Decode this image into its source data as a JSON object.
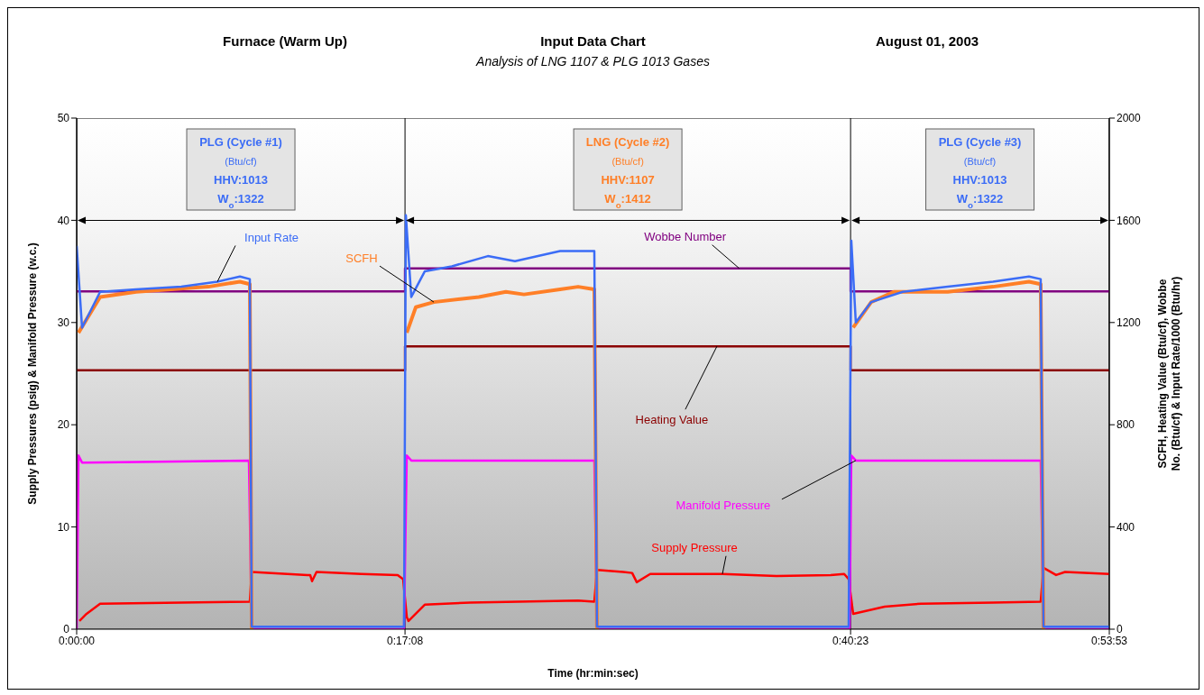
{
  "chart_data": {
    "type": "line",
    "title": "Input Data Chart",
    "subtitle": "Analysis of LNG 1107 & PLG 1013 Gases",
    "xlabel": "Time (hr:min:sec)",
    "ylabel": "Supply Pressures (psig) & Manifold Pressure (w.c.)",
    "y2label": "SCFH, Heating Value (Btu/cf), Wobbe No. (Btu/cf) & Input Rate/1000 (Btu/hr)",
    "annotations": [
      "Furnace (Warm Up)",
      "August 01, 2003",
      "PLG (Cycle #1)\n(Btu/cf)\nHHV:1013\nW$_{o}$:1322",
      "LNG (Cycle #2)\n(Btu/cf)\nHHV:1107\nW$_{o}$:1412",
      "PLG (Cycle #3)\n(Btu/cf)\nHHV:1013\nW$_{o}$:1322"
    ],
    "xlim": [
      0,
      0.89806
    ],
    "xticks": [
      {
        "value": 0,
        "label": "0:00:00"
      },
      {
        "value": 0.28556,
        "label": "0:17:08"
      },
      {
        "value": 0.67306,
        "label": "0:40:23"
      },
      {
        "value": 0.89806,
        "label": "0:53:53"
      }
    ],
    "ylim": [
      0,
      50
    ],
    "yticks": [
      0,
      10,
      20,
      30,
      40,
      50
    ],
    "y2lim": [
      0,
      2000
    ],
    "y2ticks": [
      0,
      400,
      800,
      1200,
      1600,
      2000
    ],
    "marker": "none",
    "line_style": "solid",
    "grid": "x",
    "series": [
      {
        "name": "Wobbe Number",
        "color": "#800080",
        "axis": "y2",
        "x": [
          0,
          0.28556,
          0.28556,
          0.67306,
          0.67306,
          0.89806
        ],
        "values": [
          1322,
          1322,
          1412,
          1412,
          1322,
          1322
        ]
      },
      {
        "name": "Heating Value",
        "color": "#8b0000",
        "axis": "y2",
        "x": [
          0,
          0.28556,
          0.28556,
          0.67306,
          0.67306,
          0.89806
        ],
        "values": [
          1013,
          1013,
          1107,
          1107,
          1013,
          1013
        ]
      },
      {
        "name": "Supply Pressure",
        "color": "#ff0000",
        "x": [
          0.0024,
          0.0086,
          0.0204,
          0.091,
          0.1506,
          0.1522,
          0.1694,
          0.2008,
          0.2031,
          0.2047,
          0.2086,
          0.2478,
          0.2792,
          0.2839,
          0.2871,
          0.2886,
          0.3027,
          0.342,
          0.4361,
          0.4502,
          0.4525,
          0.4753,
          0.4831,
          0.4871,
          0.4988,
          0.5616,
          0.6086,
          0.6557,
          0.6675,
          0.6714,
          0.6753,
          0.7027,
          0.7341,
          0.7969,
          0.8384,
          0.8408,
          0.8518,
          0.8596,
          0.89806
        ],
        "values": [
          0.8,
          1.5,
          2.5,
          2.6,
          2.7,
          5.6,
          5.5,
          5.3,
          5.3,
          4.7,
          5.6,
          5.4,
          5.3,
          4.9,
          1.2,
          0.8,
          2.4,
          2.6,
          2.8,
          2.7,
          5.8,
          5.6,
          5.5,
          4.6,
          5.4,
          5.4,
          5.2,
          5.3,
          5.4,
          4.9,
          1.5,
          2.2,
          2.5,
          2.6,
          2.7,
          6,
          5.3,
          5.6,
          5.4
        ]
      },
      {
        "name": "Manifold Pressure",
        "color": "#ff00ff",
        "x": [
          0,
          0.0016,
          0.0047,
          0.1498,
          0.1522,
          0.2847,
          0.2871,
          0.291,
          0.4502,
          0.4525,
          0.6722,
          0.6737,
          0.6776,
          0.8384,
          0.8408,
          0.89806
        ],
        "values": [
          0,
          17,
          16.3,
          16.5,
          0,
          0,
          17,
          16.5,
          16.5,
          0,
          0,
          17,
          16.5,
          16.5,
          0,
          0
        ]
      },
      {
        "name": "SCFH",
        "color": "#ff7f27",
        "axis": "y2",
        "x": [
          0.0016,
          0.0204,
          0.0518,
          0.1145,
          0.142,
          0.1506,
          0.1522,
          0.2,
          0.2871,
          0.2949,
          0.3106,
          0.3498,
          0.3733,
          0.389,
          0.4204,
          0.4361,
          0.4502,
          0.4525,
          0.6,
          0.6753,
          0.691,
          0.7106,
          0.7576,
          0.7969,
          0.8282,
          0.8384,
          0.8408
        ],
        "values": [
          1160,
          1300,
          1320,
          1340,
          1360,
          1350,
          0,
          null,
          1160,
          1260,
          1280,
          1300,
          1320,
          1310,
          1330,
          1340,
          1330,
          0,
          null,
          1180,
          1280,
          1320,
          1320,
          1340,
          1360,
          1350,
          0
        ]
      },
      {
        "name": "Input Rate",
        "color": "#3b6cf6",
        "axis": "y2",
        "x": [
          0,
          0.0047,
          0.0204,
          0.0518,
          0.091,
          0.1224,
          0.142,
          0.1506,
          0.1522,
          0.2847,
          0.2863,
          0.291,
          0.3027,
          0.3263,
          0.3576,
          0.3812,
          0.4204,
          0.4502,
          0.4525,
          0.6714,
          0.6737,
          0.6776,
          0.691,
          0.7184,
          0.7576,
          0.7969,
          0.8282,
          0.8384,
          0.8408,
          0.89806
        ],
        "values": [
          1500,
          1180,
          1320,
          1330,
          1340,
          1360,
          1380,
          1370,
          10,
          10,
          1620,
          1300,
          1400,
          1420,
          1460,
          1440,
          1480,
          1480,
          10,
          10,
          1520,
          1200,
          1280,
          1320,
          1340,
          1360,
          1380,
          1370,
          10,
          10
        ]
      }
    ]
  }
}
